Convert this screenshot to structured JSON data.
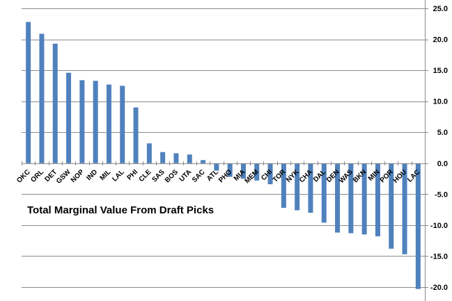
{
  "chart_data": {
    "type": "bar",
    "title": "Total Marginal Value From Draft Picks",
    "xlabel": "",
    "ylabel": "",
    "categories": [
      "OKC",
      "ORL",
      "DET",
      "GSW",
      "NOP",
      "IND",
      "MIL",
      "LAL",
      "PHI",
      "CLE",
      "SAS",
      "BOS",
      "UTA",
      "SAC",
      "ATL",
      "PHO",
      "MIA",
      "MEM",
      "CHI",
      "TOR",
      "NYK",
      "CHA",
      "DAL",
      "DEN",
      "WAS",
      "BKN",
      "MIN",
      "POR",
      "HOU",
      "LAC"
    ],
    "values": [
      22.8,
      20.9,
      19.3,
      14.6,
      13.4,
      13.3,
      12.7,
      12.5,
      9.0,
      3.2,
      1.8,
      1.6,
      1.4,
      0.5,
      -1.2,
      -2.2,
      -2.5,
      -2.8,
      -3.4,
      -7.2,
      -7.6,
      -8.0,
      -9.6,
      -11.2,
      -11.3,
      -11.5,
      -11.8,
      -13.8,
      -14.7,
      -20.3
    ],
    "ylim": [
      -20.0,
      25.0
    ],
    "yticks": [
      "25.0",
      "20.0",
      "15.0",
      "10.0",
      "5.0",
      "0.0",
      "-5.0",
      "-10.0",
      "-15.0",
      "-20.0"
    ],
    "ytick_values": [
      25,
      20,
      15,
      10,
      5,
      0,
      -5,
      -10,
      -15,
      -20
    ],
    "y_axis_side": "right",
    "grid": true,
    "bar_color": "#4f81bd",
    "grid_color": "#8a8a8a"
  }
}
